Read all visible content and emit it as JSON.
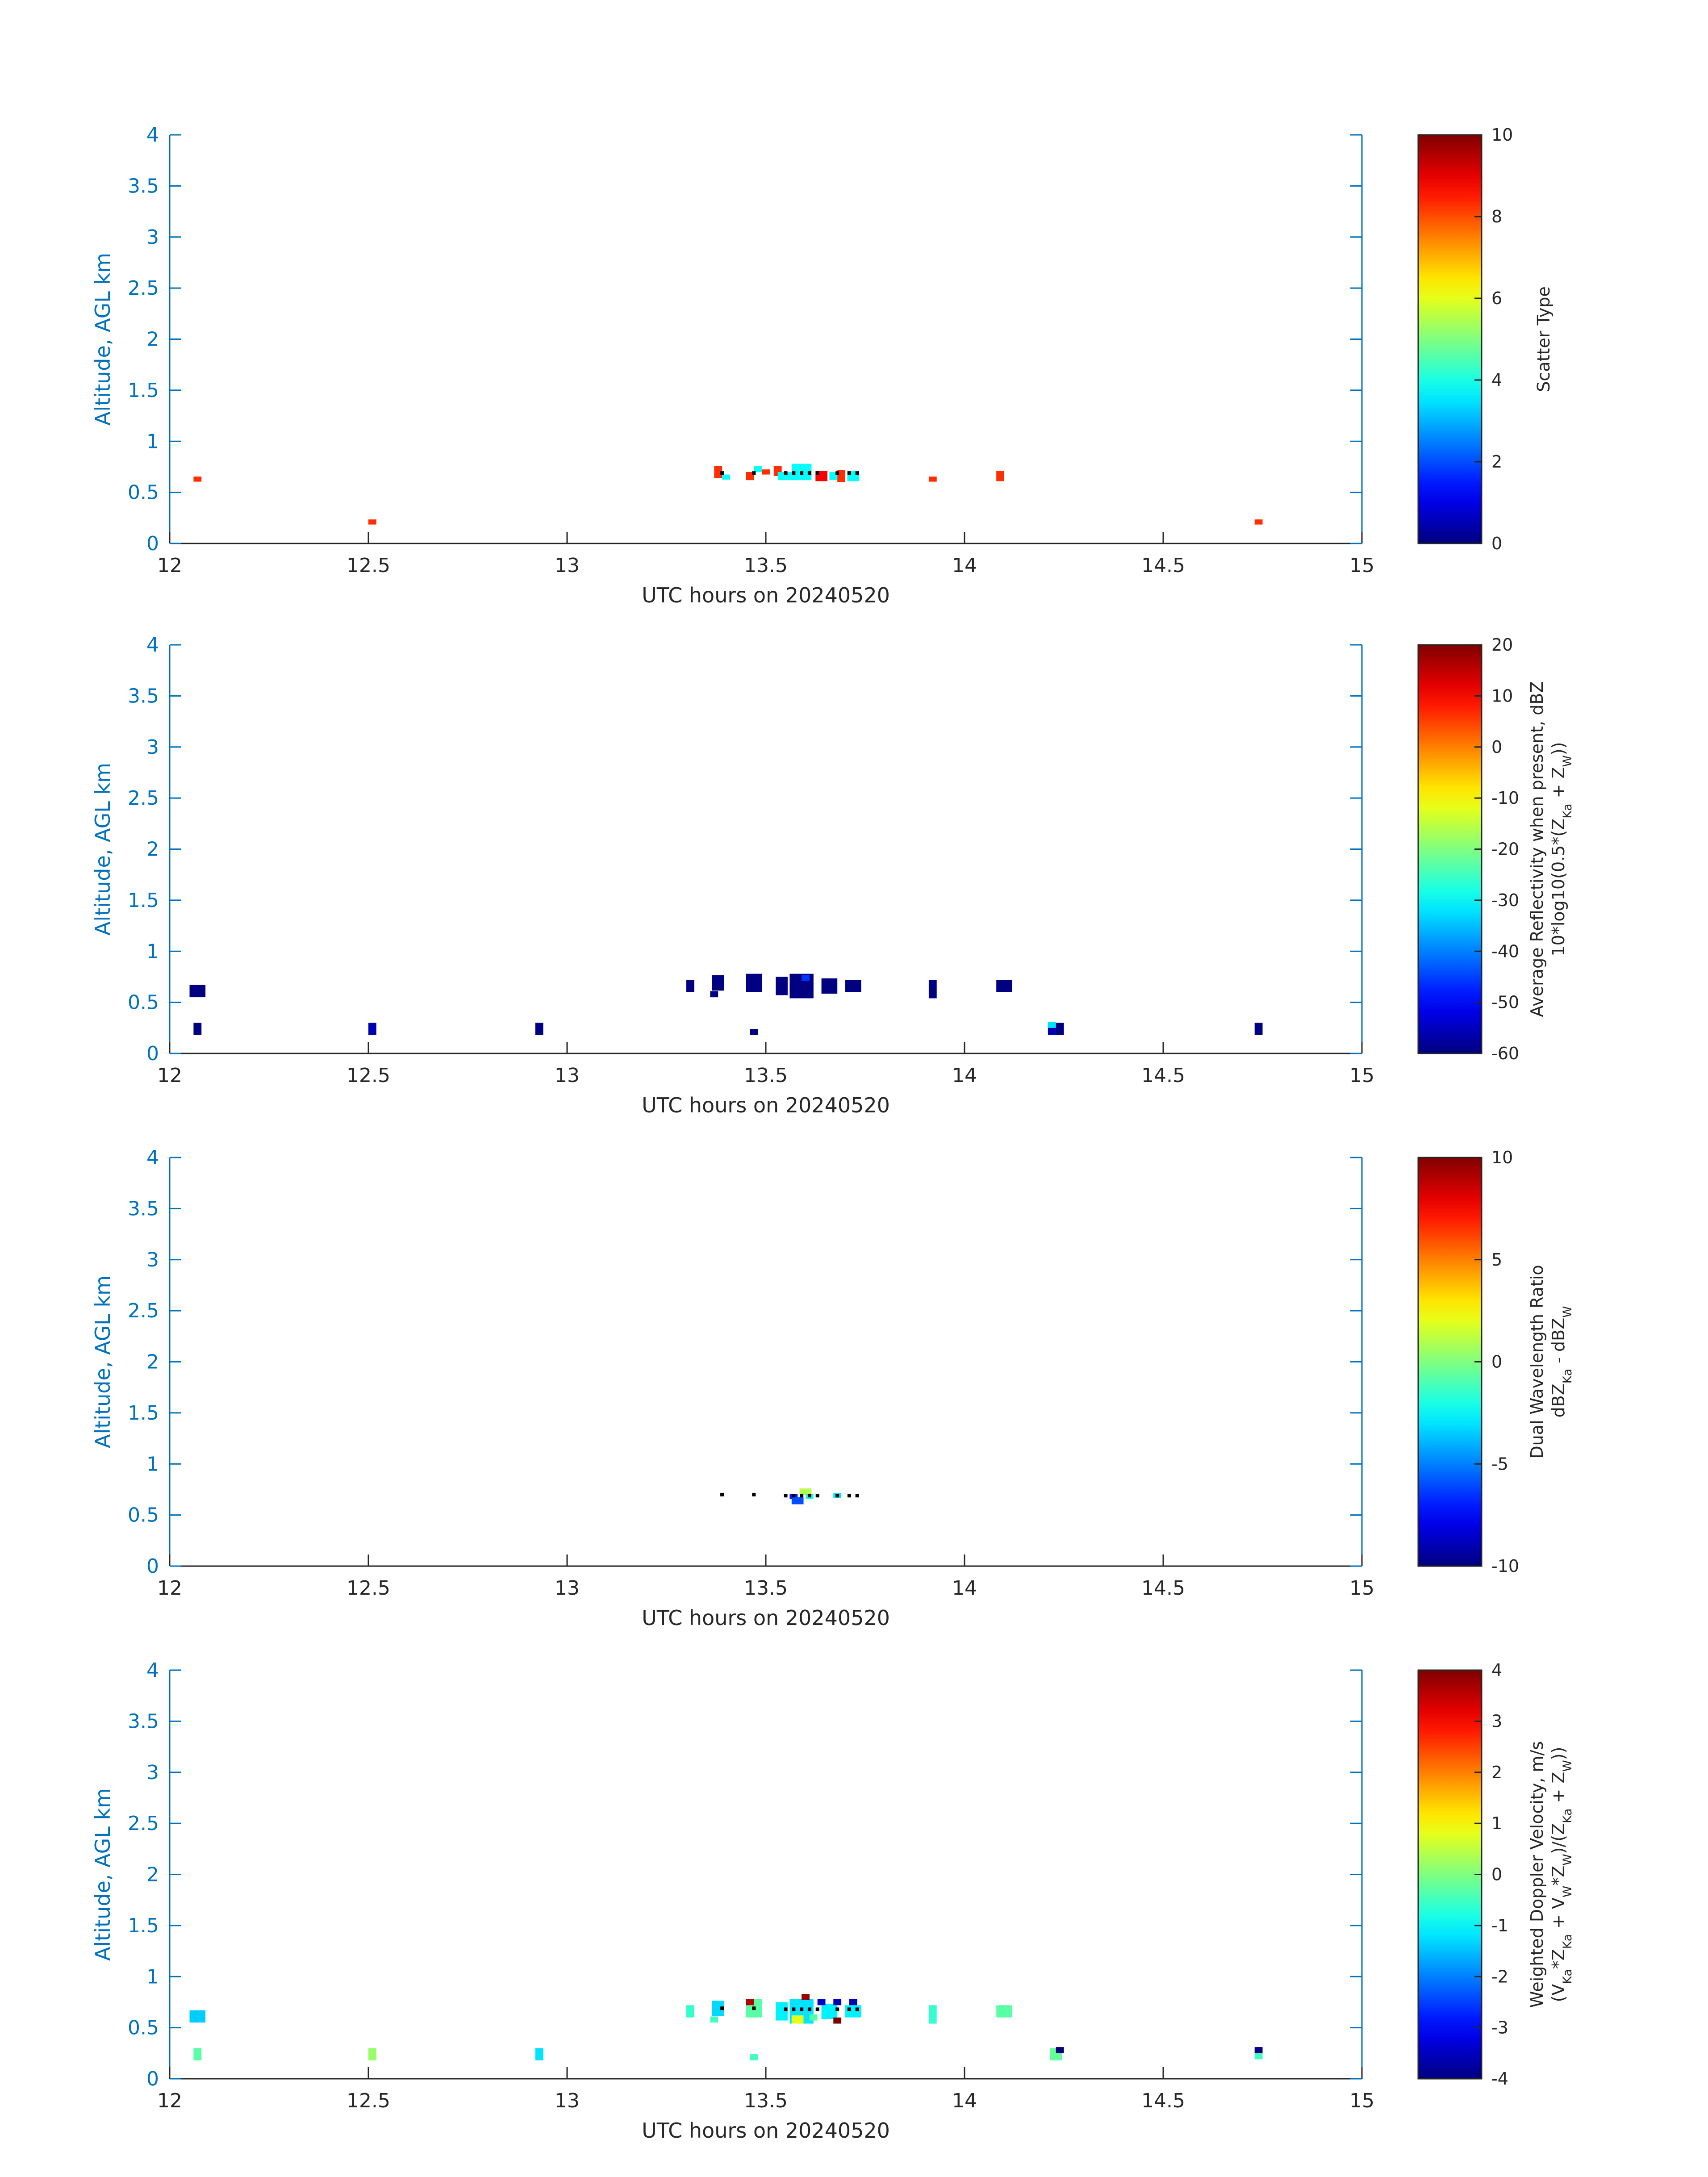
{
  "chart_data": [
    {
      "type": "heatmap",
      "xlabel": "UTC hours on 20240520",
      "ylabel": "Altitude, AGL km",
      "xlim": [
        12,
        15
      ],
      "ylim": [
        0,
        4
      ],
      "xticks": [
        "12",
        "12.5",
        "13",
        "13.5",
        "14",
        "14.5",
        "15"
      ],
      "yticks": [
        "0",
        "0.5",
        "1",
        "1.5",
        "2",
        "2.5",
        "3",
        "3.5",
        "4"
      ],
      "colorbar": {
        "label_lines": [
          "Scatter Type"
        ],
        "clim": [
          0,
          10
        ],
        "ticks": [
          "0",
          "2",
          "4",
          "6",
          "8",
          "10"
        ],
        "colormap": "jet"
      },
      "cells": [
        {
          "x": 12.07,
          "y": 0.63,
          "w": 0.02,
          "h": 0.05,
          "v": 8.3
        },
        {
          "x": 12.51,
          "y": 0.21,
          "w": 0.02,
          "h": 0.05,
          "v": 8.3
        },
        {
          "x": 13.38,
          "y": 0.7,
          "w": 0.02,
          "h": 0.12,
          "v": 8.3
        },
        {
          "x": 13.4,
          "y": 0.65,
          "w": 0.02,
          "h": 0.05,
          "v": 3.8
        },
        {
          "x": 13.46,
          "y": 0.66,
          "w": 0.02,
          "h": 0.08,
          "v": 8.3
        },
        {
          "x": 13.48,
          "y": 0.73,
          "w": 0.02,
          "h": 0.06,
          "v": 3.8
        },
        {
          "x": 13.5,
          "y": 0.7,
          "w": 0.02,
          "h": 0.05,
          "v": 8.3
        },
        {
          "x": 13.53,
          "y": 0.71,
          "w": 0.02,
          "h": 0.1,
          "v": 8.3
        },
        {
          "x": 13.55,
          "y": 0.66,
          "w": 0.04,
          "h": 0.08,
          "v": 3.8
        },
        {
          "x": 13.59,
          "y": 0.7,
          "w": 0.05,
          "h": 0.16,
          "v": 3.8
        },
        {
          "x": 13.64,
          "y": 0.66,
          "w": 0.03,
          "h": 0.1,
          "v": 8.8
        },
        {
          "x": 13.67,
          "y": 0.66,
          "w": 0.02,
          "h": 0.08,
          "v": 3.8
        },
        {
          "x": 13.69,
          "y": 0.66,
          "w": 0.02,
          "h": 0.12,
          "v": 8.3
        },
        {
          "x": 13.72,
          "y": 0.66,
          "w": 0.03,
          "h": 0.1,
          "v": 3.8
        },
        {
          "x": 13.92,
          "y": 0.63,
          "w": 0.02,
          "h": 0.05,
          "v": 8.3
        },
        {
          "x": 14.09,
          "y": 0.66,
          "w": 0.02,
          "h": 0.1,
          "v": 8.3
        },
        {
          "x": 14.74,
          "y": 0.21,
          "w": 0.02,
          "h": 0.05,
          "v": 8.3
        }
      ],
      "markers": [
        {
          "x": 13.39,
          "y": 0.69
        },
        {
          "x": 13.47,
          "y": 0.69
        },
        {
          "x": 13.55,
          "y": 0.69
        },
        {
          "x": 13.57,
          "y": 0.69
        },
        {
          "x": 13.59,
          "y": 0.69
        },
        {
          "x": 13.61,
          "y": 0.69
        },
        {
          "x": 13.63,
          "y": 0.69
        },
        {
          "x": 13.68,
          "y": 0.69
        },
        {
          "x": 13.71,
          "y": 0.69
        },
        {
          "x": 13.73,
          "y": 0.69
        }
      ]
    },
    {
      "type": "heatmap",
      "xlabel": "UTC hours on 20240520",
      "ylabel": "Altitude, AGL km",
      "xlim": [
        12,
        15
      ],
      "ylim": [
        0,
        4
      ],
      "xticks": [
        "12",
        "12.5",
        "13",
        "13.5",
        "14",
        "14.5",
        "15"
      ],
      "yticks": [
        "0",
        "0.5",
        "1",
        "1.5",
        "2",
        "2.5",
        "3",
        "3.5",
        "4"
      ],
      "colorbar": {
        "label_lines": [
          "Average Reflectivity when present, dBZ",
          "10*log10(0.5*(Z_Ka + Z_W))"
        ],
        "clim": [
          -60,
          20
        ],
        "ticks": [
          "-60",
          "-50",
          "-40",
          "-30",
          "-20",
          "-10",
          "0",
          "10",
          "20"
        ],
        "colormap": "jet"
      },
      "cells": [
        {
          "x": 12.07,
          "y": 0.61,
          "w": 0.04,
          "h": 0.12,
          "v": -60
        },
        {
          "x": 12.07,
          "y": 0.24,
          "w": 0.02,
          "h": 0.12,
          "v": -60
        },
        {
          "x": 12.51,
          "y": 0.24,
          "w": 0.02,
          "h": 0.12,
          "v": -56
        },
        {
          "x": 12.93,
          "y": 0.24,
          "w": 0.02,
          "h": 0.12,
          "v": -60
        },
        {
          "x": 13.31,
          "y": 0.66,
          "w": 0.02,
          "h": 0.12,
          "v": -60
        },
        {
          "x": 13.38,
          "y": 0.69,
          "w": 0.03,
          "h": 0.15,
          "v": -60
        },
        {
          "x": 13.37,
          "y": 0.58,
          "w": 0.02,
          "h": 0.06,
          "v": -60
        },
        {
          "x": 13.47,
          "y": 0.69,
          "w": 0.04,
          "h": 0.18,
          "v": -60
        },
        {
          "x": 13.47,
          "y": 0.21,
          "w": 0.02,
          "h": 0.06,
          "v": -60
        },
        {
          "x": 13.54,
          "y": 0.66,
          "w": 0.03,
          "h": 0.18,
          "v": -60
        },
        {
          "x": 13.59,
          "y": 0.66,
          "w": 0.06,
          "h": 0.24,
          "v": -60
        },
        {
          "x": 13.6,
          "y": 0.74,
          "w": 0.02,
          "h": 0.06,
          "v": -46
        },
        {
          "x": 13.66,
          "y": 0.66,
          "w": 0.04,
          "h": 0.15,
          "v": -60
        },
        {
          "x": 13.72,
          "y": 0.66,
          "w": 0.04,
          "h": 0.12,
          "v": -60
        },
        {
          "x": 13.92,
          "y": 0.63,
          "w": 0.02,
          "h": 0.18,
          "v": -60
        },
        {
          "x": 14.1,
          "y": 0.66,
          "w": 0.04,
          "h": 0.12,
          "v": -60
        },
        {
          "x": 14.22,
          "y": 0.24,
          "w": 0.02,
          "h": 0.12,
          "v": -56
        },
        {
          "x": 14.22,
          "y": 0.28,
          "w": 0.02,
          "h": 0.06,
          "v": -32
        },
        {
          "x": 14.24,
          "y": 0.24,
          "w": 0.02,
          "h": 0.12,
          "v": -60
        },
        {
          "x": 14.74,
          "y": 0.24,
          "w": 0.02,
          "h": 0.12,
          "v": -60
        }
      ],
      "markers": []
    },
    {
      "type": "heatmap",
      "xlabel": "UTC hours on 20240520",
      "ylabel": "Altitude, AGL km",
      "xlim": [
        12,
        15
      ],
      "ylim": [
        0,
        4
      ],
      "xticks": [
        "12",
        "12.5",
        "13",
        "13.5",
        "14",
        "14.5",
        "15"
      ],
      "yticks": [
        "0",
        "0.5",
        "1",
        "1.5",
        "2",
        "2.5",
        "3",
        "3.5",
        "4"
      ],
      "colorbar": {
        "label_lines": [
          "Dual Wavelength Ratio",
          "dBZ_Ka - dBZ_W"
        ],
        "clim": [
          -10,
          10
        ],
        "ticks": [
          "-10",
          "-5",
          "0",
          "5",
          "10"
        ],
        "colormap": "jet"
      },
      "cells": [
        {
          "x": 13.57,
          "y": 0.68,
          "w": 0.02,
          "h": 0.05,
          "v": -7
        },
        {
          "x": 13.58,
          "y": 0.64,
          "w": 0.03,
          "h": 0.07,
          "v": -6
        },
        {
          "x": 13.6,
          "y": 0.73,
          "w": 0.03,
          "h": 0.06,
          "v": 1
        },
        {
          "x": 13.61,
          "y": 0.68,
          "w": 0.02,
          "h": 0.05,
          "v": -2
        },
        {
          "x": 13.68,
          "y": 0.69,
          "w": 0.02,
          "h": 0.05,
          "v": -3
        }
      ],
      "markers": [
        {
          "x": 13.39,
          "y": 0.7
        },
        {
          "x": 13.47,
          "y": 0.7
        },
        {
          "x": 13.55,
          "y": 0.69
        },
        {
          "x": 13.57,
          "y": 0.69
        },
        {
          "x": 13.59,
          "y": 0.69
        },
        {
          "x": 13.61,
          "y": 0.69
        },
        {
          "x": 13.63,
          "y": 0.69
        },
        {
          "x": 13.68,
          "y": 0.69
        },
        {
          "x": 13.71,
          "y": 0.69
        },
        {
          "x": 13.73,
          "y": 0.69
        }
      ]
    },
    {
      "type": "heatmap",
      "xlabel": "UTC hours on 20240520",
      "ylabel": "Altitude, AGL km",
      "xlim": [
        12,
        15
      ],
      "ylim": [
        0,
        4
      ],
      "xticks": [
        "12",
        "12.5",
        "13",
        "13.5",
        "14",
        "14.5",
        "15"
      ],
      "yticks": [
        "0",
        "0.5",
        "1",
        "1.5",
        "2",
        "2.5",
        "3",
        "3.5",
        "4"
      ],
      "colorbar": {
        "label_lines": [
          "Weighted Doppler Velocity, m/s",
          "(V_Ka*Z_Ka + V_W*Z_W)/(Z_Ka + Z_W))"
        ],
        "clim": [
          -4,
          4
        ],
        "ticks": [
          "-4",
          "-3",
          "-2",
          "-1",
          "0",
          "1",
          "2",
          "3",
          "4"
        ],
        "colormap": "jet"
      },
      "cells": [
        {
          "x": 12.07,
          "y": 0.61,
          "w": 0.04,
          "h": 0.12,
          "v": -1.4
        },
        {
          "x": 12.07,
          "y": 0.24,
          "w": 0.02,
          "h": 0.12,
          "v": -0.3
        },
        {
          "x": 12.51,
          "y": 0.24,
          "w": 0.02,
          "h": 0.12,
          "v": 0.2
        },
        {
          "x": 12.93,
          "y": 0.24,
          "w": 0.02,
          "h": 0.12,
          "v": -1.2
        },
        {
          "x": 13.31,
          "y": 0.66,
          "w": 0.02,
          "h": 0.12,
          "v": -0.6
        },
        {
          "x": 13.38,
          "y": 0.69,
          "w": 0.03,
          "h": 0.15,
          "v": -1.3
        },
        {
          "x": 13.37,
          "y": 0.58,
          "w": 0.02,
          "h": 0.06,
          "v": -0.5
        },
        {
          "x": 13.47,
          "y": 0.69,
          "w": 0.04,
          "h": 0.18,
          "v": -0.3
        },
        {
          "x": 13.46,
          "y": 0.75,
          "w": 0.02,
          "h": 0.06,
          "v": 3.6
        },
        {
          "x": 13.47,
          "y": 0.21,
          "w": 0.02,
          "h": 0.06,
          "v": -0.5
        },
        {
          "x": 13.54,
          "y": 0.66,
          "w": 0.03,
          "h": 0.18,
          "v": -1.1
        },
        {
          "x": 13.59,
          "y": 0.66,
          "w": 0.06,
          "h": 0.24,
          "v": -1.2
        },
        {
          "x": 13.58,
          "y": 0.58,
          "w": 0.03,
          "h": 0.08,
          "v": 0.8
        },
        {
          "x": 13.6,
          "y": 0.8,
          "w": 0.02,
          "h": 0.06,
          "v": 3.8
        },
        {
          "x": 13.62,
          "y": 0.6,
          "w": 0.02,
          "h": 0.06,
          "v": -0.3
        },
        {
          "x": 13.66,
          "y": 0.66,
          "w": 0.04,
          "h": 0.15,
          "v": -1.1
        },
        {
          "x": 13.64,
          "y": 0.75,
          "w": 0.02,
          "h": 0.06,
          "v": -3.4
        },
        {
          "x": 13.68,
          "y": 0.57,
          "w": 0.02,
          "h": 0.06,
          "v": 4.0
        },
        {
          "x": 13.68,
          "y": 0.75,
          "w": 0.02,
          "h": 0.06,
          "v": -3.6
        },
        {
          "x": 13.72,
          "y": 0.66,
          "w": 0.04,
          "h": 0.12,
          "v": -1.1
        },
        {
          "x": 13.72,
          "y": 0.75,
          "w": 0.02,
          "h": 0.06,
          "v": -3.6
        },
        {
          "x": 13.92,
          "y": 0.63,
          "w": 0.02,
          "h": 0.18,
          "v": -0.6
        },
        {
          "x": 14.1,
          "y": 0.66,
          "w": 0.04,
          "h": 0.12,
          "v": -0.3
        },
        {
          "x": 14.23,
          "y": 0.24,
          "w": 0.03,
          "h": 0.12,
          "v": -0.2
        },
        {
          "x": 14.24,
          "y": 0.28,
          "w": 0.02,
          "h": 0.06,
          "v": -4.0
        },
        {
          "x": 14.74,
          "y": 0.28,
          "w": 0.02,
          "h": 0.06,
          "v": -4.0
        },
        {
          "x": 14.74,
          "y": 0.22,
          "w": 0.02,
          "h": 0.06,
          "v": -0.5
        }
      ],
      "markers": [
        {
          "x": 13.39,
          "y": 0.69
        },
        {
          "x": 13.47,
          "y": 0.69
        },
        {
          "x": 13.55,
          "y": 0.68
        },
        {
          "x": 13.57,
          "y": 0.68
        },
        {
          "x": 13.59,
          "y": 0.68
        },
        {
          "x": 13.61,
          "y": 0.68
        },
        {
          "x": 13.63,
          "y": 0.68
        },
        {
          "x": 13.68,
          "y": 0.68
        },
        {
          "x": 13.71,
          "y": 0.68
        },
        {
          "x": 13.73,
          "y": 0.68
        }
      ]
    }
  ]
}
